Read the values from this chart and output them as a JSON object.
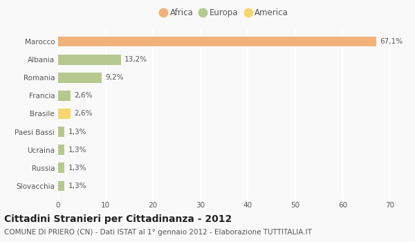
{
  "categories": [
    "Slovacchia",
    "Russia",
    "Ucraina",
    "Paesi Bassi",
    "Brasile",
    "Francia",
    "Romania",
    "Albania",
    "Marocco"
  ],
  "values": [
    1.3,
    1.3,
    1.3,
    1.3,
    2.6,
    2.6,
    9.2,
    13.2,
    67.1
  ],
  "colors": [
    "#b5c98e",
    "#b5c98e",
    "#b5c98e",
    "#b5c98e",
    "#f5d76e",
    "#b5c98e",
    "#b5c98e",
    "#b5c98e",
    "#f0b27a"
  ],
  "labels": [
    "1,3%",
    "1,3%",
    "1,3%",
    "1,3%",
    "2,6%",
    "2,6%",
    "9,2%",
    "13,2%",
    "67,1%"
  ],
  "legend": [
    {
      "label": "Africa",
      "color": "#f0b27a"
    },
    {
      "label": "Europa",
      "color": "#b5c98e"
    },
    {
      "label": "America",
      "color": "#f5d76e"
    }
  ],
  "title": "Cittadini Stranieri per Cittadinanza - 2012",
  "subtitle": "COMUNE DI PRIERO (CN) - Dati ISTAT al 1° gennaio 2012 - Elaborazione TUTTITALIA.IT",
  "xlim": [
    0,
    70
  ],
  "xticks": [
    0,
    10,
    20,
    30,
    40,
    50,
    60,
    70
  ],
  "background_color": "#f9f9f9",
  "grid_color": "#ffffff",
  "bar_height": 0.55,
  "title_fontsize": 10,
  "subtitle_fontsize": 7.5,
  "label_fontsize": 7.5,
  "tick_fontsize": 7.5,
  "legend_fontsize": 8.5
}
